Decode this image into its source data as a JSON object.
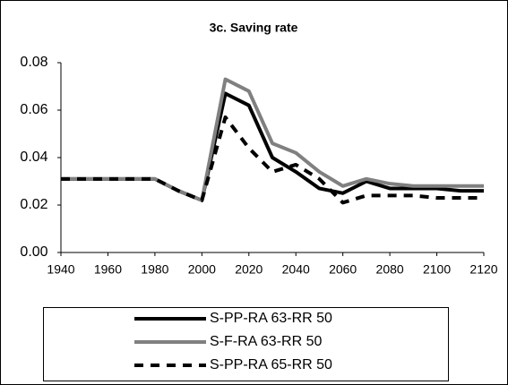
{
  "chart_data": {
    "type": "line",
    "title": "3c. Saving rate",
    "x": [
      1940,
      1950,
      1960,
      1970,
      1980,
      1990,
      2000,
      2010,
      2020,
      2030,
      2040,
      2050,
      2060,
      2070,
      2080,
      2090,
      2100,
      2110,
      2120
    ],
    "xlim": [
      1940,
      2120
    ],
    "xticks": [
      1940,
      1960,
      1980,
      2000,
      2020,
      2040,
      2060,
      2080,
      2100,
      2120
    ],
    "ylim": [
      0,
      0.08
    ],
    "yticks": [
      {
        "value": 0,
        "label": "0.00"
      },
      0.02,
      0.04,
      0.06,
      0.08
    ],
    "series": [
      {
        "name": "S-PP-RA 63-RR 50",
        "color": "#000000",
        "line_style": "solid",
        "values": [
          0.031,
          0.031,
          0.031,
          0.031,
          0.031,
          0.026,
          0.022,
          0.067,
          0.062,
          0.04,
          0.034,
          0.027,
          0.025,
          0.03,
          0.027,
          0.027,
          0.027,
          0.026,
          0.026
        ]
      },
      {
        "name": "S-F-RA 63-RR 50",
        "color": "#808080",
        "line_style": "solid",
        "values": [
          0.031,
          0.031,
          0.031,
          0.031,
          0.031,
          0.026,
          0.022,
          0.073,
          0.068,
          0.046,
          0.042,
          0.034,
          0.028,
          0.031,
          0.029,
          0.028,
          0.028,
          0.028,
          0.028
        ]
      },
      {
        "name": "S-PP-RA 65-RR 50",
        "color": "#000000",
        "line_style": "dashed",
        "values": [
          0.031,
          0.031,
          0.031,
          0.031,
          0.031,
          0.026,
          0.022,
          0.057,
          0.044,
          0.034,
          0.037,
          0.031,
          0.021,
          0.024,
          0.024,
          0.024,
          0.023,
          0.023,
          0.023
        ]
      }
    ]
  }
}
